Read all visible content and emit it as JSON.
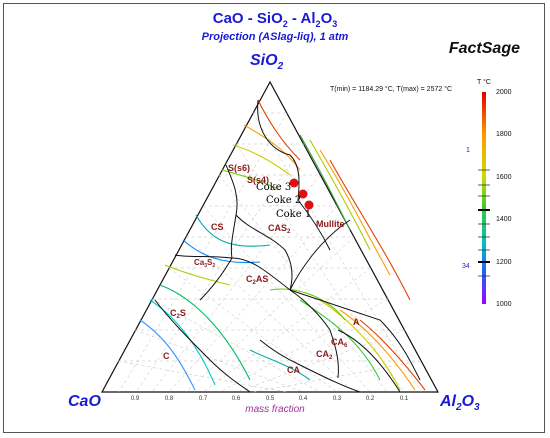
{
  "title": {
    "line1": "CaO - SiO",
    "sub": "2",
    "line1b": " - Al",
    "sub2": "2",
    "line1c": "O",
    "sub3": "3"
  },
  "subtitle": "Projection (ASlag-liq),  1 atm",
  "brand": "FactSage",
  "apex": {
    "top": {
      "a": "SiO",
      "b": "2"
    },
    "left": "CaO",
    "right": {
      "a": "Al",
      "b": "2",
      "c": "O",
      "d": "3"
    }
  },
  "temperature_range": "T(min) = 1184.29 °C, T(max) = 2572 °C",
  "axis_label": "mass fraction",
  "colorbar": {
    "title": "T °C",
    "ticks": [
      "2000",
      "1800",
      "1600",
      "1400",
      "1200",
      "1000"
    ],
    "marks": [
      "1",
      "34"
    ]
  },
  "bottom_ticks": [
    "0.9",
    "0.8",
    "0.7",
    "0.6",
    "0.5",
    "0.4",
    "0.3",
    "0.2",
    "0.1"
  ],
  "phase_labels": [
    "S(s6)",
    "S(s4)",
    "CS",
    "CAS",
    "2",
    "Mullite",
    "Ca",
    "3",
    "S",
    "2",
    "C",
    "2",
    "AS",
    "C",
    "2",
    "S",
    "C",
    "A",
    "CA",
    "6",
    "CA",
    "2",
    "CA"
  ],
  "coke_labels": [
    "Coke 3",
    "Coke 2",
    "Coke 1"
  ]
}
